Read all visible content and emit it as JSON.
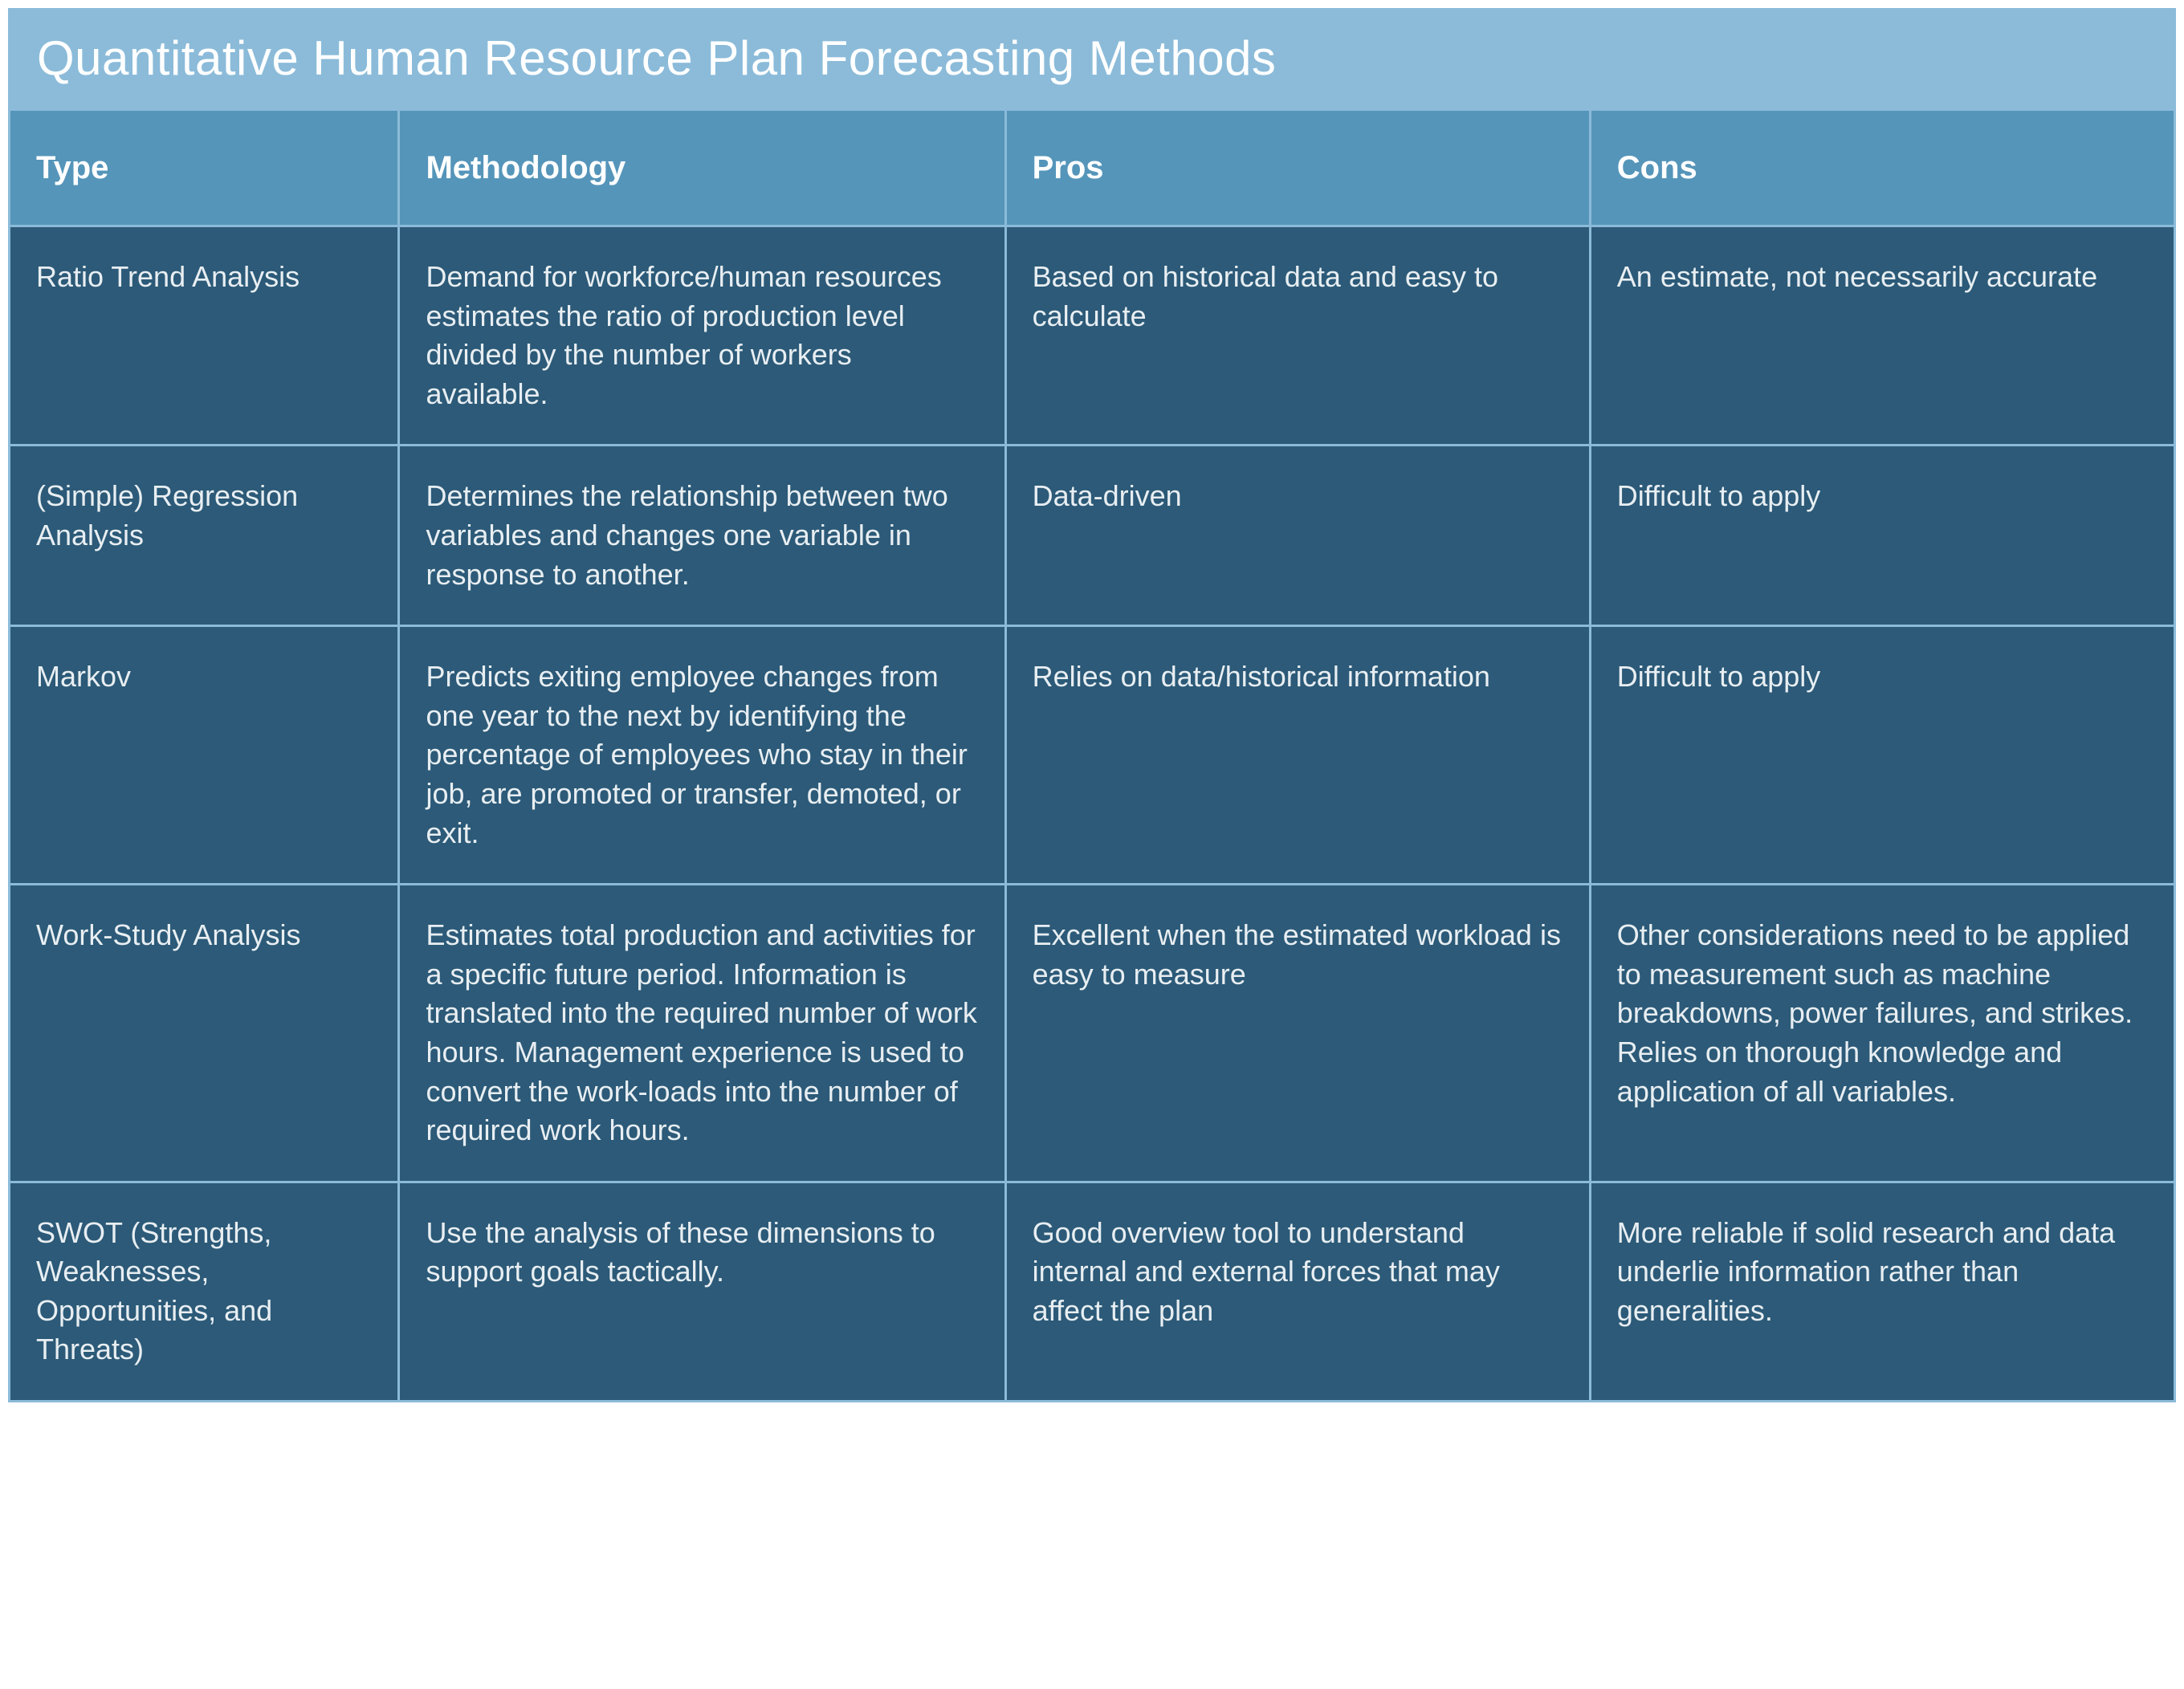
{
  "title": "Quantitative Human Resource Plan Forecasting Methods",
  "colors": {
    "title_bg": "#8bbbd9",
    "header_bg": "#5595ba",
    "cell_bg": "#2c5a78",
    "border": "#8bbbd9",
    "title_text": "#ffffff",
    "header_text": "#ffffff",
    "cell_text": "#e8eef2"
  },
  "table": {
    "column_widths_pct": [
      18,
      28,
      27,
      27
    ],
    "header_fontsize": 40,
    "cell_fontsize": 36,
    "title_fontsize": 60,
    "columns": [
      "Type",
      "Methodology",
      "Pros",
      "Cons"
    ],
    "rows": [
      {
        "type": "Ratio Trend Analysis",
        "methodology": "Demand for workforce/human resources estimates the ratio of production level divided by the number of workers available.",
        "pros": "Based on historical data and easy to calculate",
        "cons": "An estimate, not necessarily accurate"
      },
      {
        "type": "(Simple) Regression Analysis",
        "methodology": "Determines the relationship between two variables and changes one variable in response to another.",
        "pros": "Data-driven",
        "cons": "Difficult to apply"
      },
      {
        "type": "Markov",
        "methodology": "Predicts exiting employee changes from one year to the next by identifying the percentage of employees who stay in their job, are promoted or transfer, demoted, or exit.",
        "pros": "Relies on data/historical information",
        "cons": "Difficult to apply"
      },
      {
        "type": "Work-Study Analysis",
        "methodology": "Estimates total production and activities for a specific future period. Information is translated into the required number of work hours. Management experience is used to convert the work-loads into the number of required work hours.",
        "pros": "Excellent when the estimated workload is easy to measure",
        "cons": "Other considerations need to be applied to measurement such as machine breakdowns, power failures, and strikes. Relies on thorough knowledge and application of all variables."
      },
      {
        "type": "SWOT (Strengths, Weaknesses, Opportunities, and Threats)",
        "methodology": "Use the analysis of these dimensions to support goals tactically.",
        "pros": "Good overview tool to understand internal and external forces that may affect the plan",
        "cons": "More reliable if solid research and data underlie information rather than generalities."
      }
    ]
  }
}
